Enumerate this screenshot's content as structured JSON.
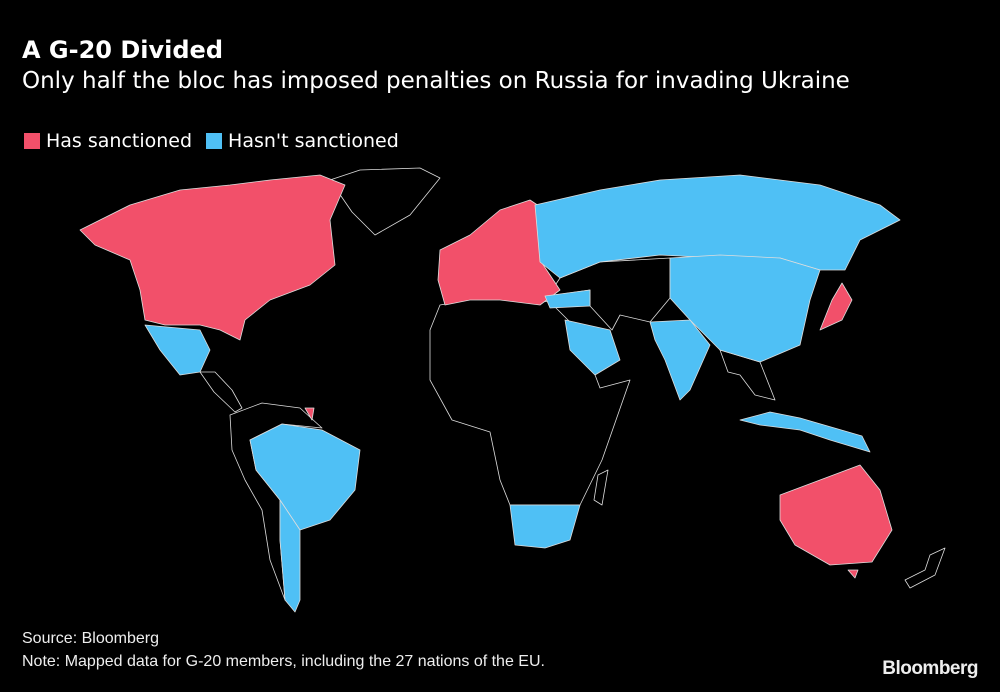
{
  "header": {
    "title": "A G-20 Divided",
    "subtitle": "Only half the bloc has imposed penalties on Russia for invading Ukraine"
  },
  "legend": [
    {
      "label": "Has sanctioned",
      "color": "#f2506a"
    },
    {
      "label": "Hasn't sanctioned",
      "color": "#4fc0f5"
    }
  ],
  "regions": {
    "sanctioned": [
      "Canada",
      "United States",
      "European Union",
      "United Kingdom",
      "Japan",
      "Australia",
      "South Korea"
    ],
    "not_sanctioned": [
      "Mexico",
      "Brazil",
      "Argentina",
      "Russia",
      "China",
      "India",
      "Saudi Arabia",
      "Turkey",
      "Indonesia",
      "South Africa"
    ]
  },
  "footer": {
    "source": "Source: Bloomberg",
    "note": "Note: Mapped data for G-20 members, including the 27 nations of the EU.",
    "brand": "Bloomberg"
  }
}
